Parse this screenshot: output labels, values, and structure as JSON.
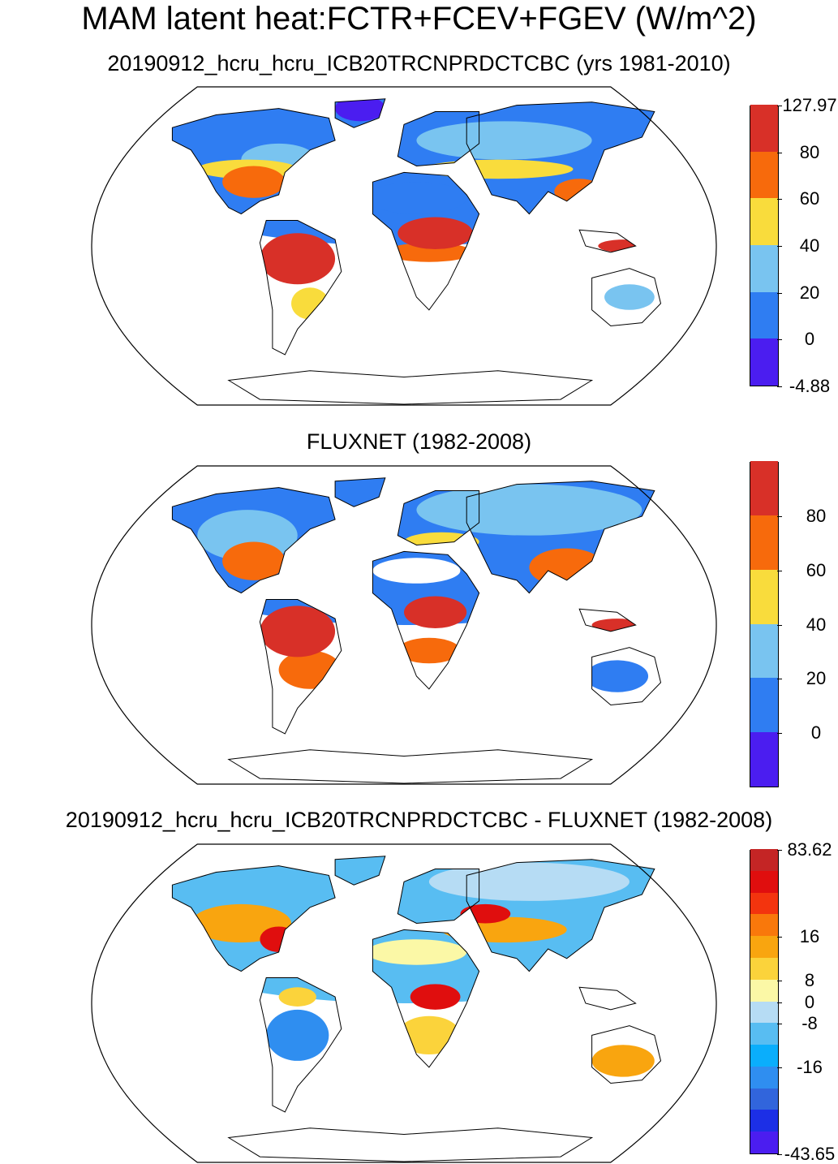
{
  "title": "MAM latent heat:FCTR+FCEV+FGEV (W/m^2)",
  "panels": [
    {
      "subtitle": "20190912_hcru_hcru_ICB20TRCNPRDCTCBC (yrs 1981-2010)",
      "colorbar": {
        "colors": [
          "#4b1df0",
          "#2f7df2",
          "#79c4f0",
          "#f9dc3c",
          "#f76a0c",
          "#d83028"
        ],
        "labels": [
          "-4.88",
          "0",
          "20",
          "40",
          "60",
          "80",
          "127.97"
        ]
      }
    },
    {
      "subtitle": "FLUXNET (1982-2008)",
      "colorbar": {
        "colors": [
          "#4b1df0",
          "#2f7df2",
          "#79c4f0",
          "#f9dc3c",
          "#f76a0c",
          "#d83028"
        ],
        "labels": [
          "0",
          "20",
          "40",
          "60",
          "80"
        ]
      }
    },
    {
      "subtitle": "20190912_hcru_hcru_ICB20TRCNPRDCTCBC - FLUXNET (1982-2008)",
      "colorbar": {
        "colors": [
          "#4b1df0",
          "#1c2fe6",
          "#3165dc",
          "#2f8ef0",
          "#0aaefc",
          "#58bdf2",
          "#b6dcf4",
          "#fbf8a6",
          "#fbd33b",
          "#f9a50f",
          "#f9780b",
          "#f3340e",
          "#e00e0e",
          "#c42525"
        ],
        "labels": [
          "-43.65",
          "-16",
          "-8",
          "0",
          "8",
          "16",
          "83.62"
        ]
      }
    }
  ]
}
